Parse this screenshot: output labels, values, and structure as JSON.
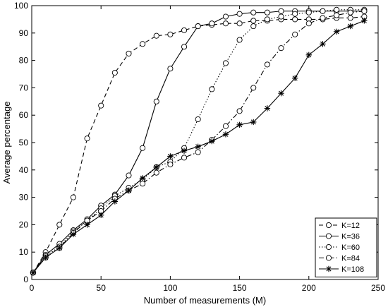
{
  "chart_data": {
    "type": "line",
    "title": "",
    "xlabel": "Number of measurements (M)",
    "ylabel": "Average percentage",
    "xlim": [
      0,
      250
    ],
    "ylim": [
      0,
      100
    ],
    "x_ticks": [
      0,
      50,
      100,
      150,
      200,
      250
    ],
    "y_ticks": [
      0,
      10,
      20,
      30,
      40,
      50,
      60,
      70,
      80,
      90,
      100
    ],
    "grid": false,
    "legend_position": "bottom-right",
    "x": [
      1,
      10,
      20,
      30,
      40,
      50,
      60,
      70,
      80,
      90,
      100,
      110,
      120,
      130,
      140,
      150,
      160,
      170,
      180,
      190,
      200,
      210,
      220,
      230,
      240
    ],
    "series": [
      {
        "name": "K=12",
        "style": "dashed",
        "marker": "circle",
        "values": [
          2.5,
          10,
          20,
          30,
          51.5,
          63.5,
          75.5,
          82.5,
          86,
          89,
          89.5,
          91,
          92.5,
          93,
          93.5,
          93.5,
          94.5,
          94.5,
          95,
          95,
          95,
          95,
          95.5,
          95.5,
          96
        ]
      },
      {
        "name": "K=36",
        "style": "solid",
        "marker": "circle",
        "values": [
          2.5,
          9,
          13,
          18,
          22,
          27,
          31,
          38,
          48,
          65,
          77,
          85,
          92.5,
          93.5,
          96,
          97,
          97.5,
          97.5,
          98,
          98,
          98,
          98,
          98,
          98,
          98
        ]
      },
      {
        "name": "K=60",
        "style": "dotted",
        "marker": "circle",
        "values": [
          2.5,
          8.5,
          12,
          17.5,
          21.5,
          26,
          30.5,
          33.5,
          36.5,
          41,
          43,
          48,
          58.5,
          69.5,
          79,
          87.5,
          92.5,
          95,
          96,
          97,
          97.5,
          98,
          98.5,
          98.5,
          98.5
        ]
      },
      {
        "name": "K=84",
        "style": "dashdot",
        "marker": "circle",
        "values": [
          2.5,
          8,
          11.5,
          17,
          21.5,
          25,
          29.5,
          32.5,
          35,
          39,
          42,
          44.5,
          46.5,
          51,
          56,
          61.5,
          70,
          78.5,
          84.5,
          89.5,
          93.5,
          95.5,
          96.5,
          97.5,
          98
        ]
      },
      {
        "name": "K=108",
        "style": "solid",
        "marker": "star",
        "values": [
          2.5,
          8,
          11.5,
          16.5,
          20,
          23.5,
          28.5,
          32.5,
          37,
          41,
          45,
          47,
          48.5,
          50.5,
          53,
          56.5,
          57.5,
          62.5,
          68,
          73.5,
          82,
          86,
          90.5,
          92.5,
          94.5
        ]
      }
    ]
  }
}
